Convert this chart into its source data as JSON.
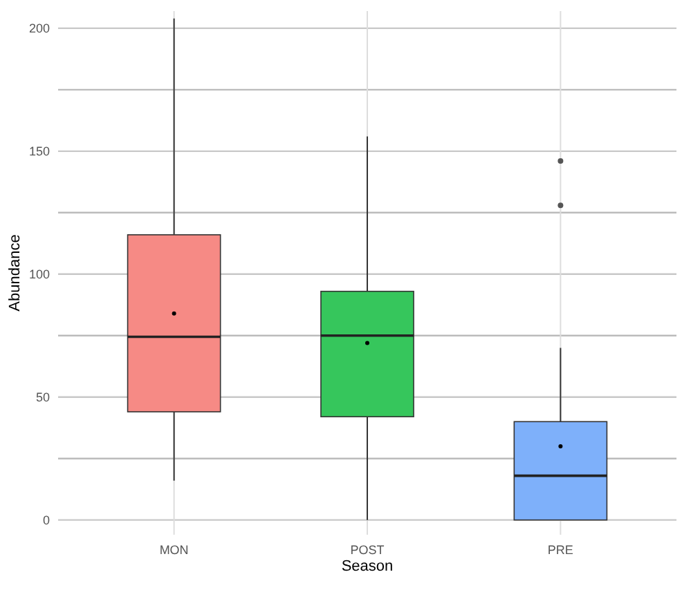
{
  "chart_data": {
    "type": "box",
    "xlabel": "Season",
    "ylabel": "Abundance",
    "categories": [
      "MON",
      "POST",
      "PRE"
    ],
    "colors": [
      "#f68a85",
      "#36c65c",
      "#7eb0fa"
    ],
    "boxes": [
      {
        "low": 16,
        "q1": 44,
        "median": 74.5,
        "q3": 116,
        "high": 204,
        "mean": 84
      },
      {
        "low": 0,
        "q1": 42,
        "median": 75,
        "q3": 93,
        "high": 156,
        "mean": 72
      },
      {
        "low": 0,
        "q1": 0,
        "median": 18,
        "q3": 40,
        "high": 70,
        "mean": 30,
        "outliers": [
          128,
          146
        ]
      }
    ],
    "ylim": [
      -6,
      207
    ],
    "yticks": [
      0,
      {
        "value": 25,
        "label": null
      },
      50,
      {
        "value": 75,
        "label": null
      },
      100,
      {
        "value": 125,
        "label": null
      },
      150,
      {
        "value": 175,
        "label": null
      },
      200
    ],
    "grid": true
  }
}
